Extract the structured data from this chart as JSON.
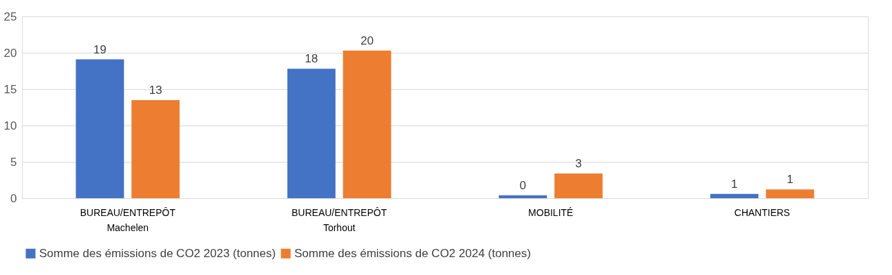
{
  "chart_data": {
    "type": "bar",
    "categories": [
      "BUREAU/ENTREPÔT\nMachelen",
      "BUREAU/ENTREPÔT\nTorhout",
      "MOBILITÉ",
      "CHANTIERS"
    ],
    "series": [
      {
        "name": "Somme des émissions de CO2 2023 (tonnes)",
        "color": "#4472c4",
        "values": [
          19.1,
          17.8,
          0.4,
          0.6
        ],
        "value_labels": [
          "19",
          "18",
          "0",
          "1"
        ]
      },
      {
        "name": "Somme des émissions de CO2 2024 (tonnes)",
        "color": "#ed7d31",
        "values": [
          13.5,
          20.3,
          3.4,
          1.2
        ],
        "value_labels": [
          "13",
          "20",
          "3",
          "1"
        ]
      }
    ],
    "ylim": [
      0,
      25
    ],
    "yticks": [
      0,
      5,
      10,
      15,
      20,
      25
    ],
    "grid": "y",
    "legend": "bottom"
  }
}
